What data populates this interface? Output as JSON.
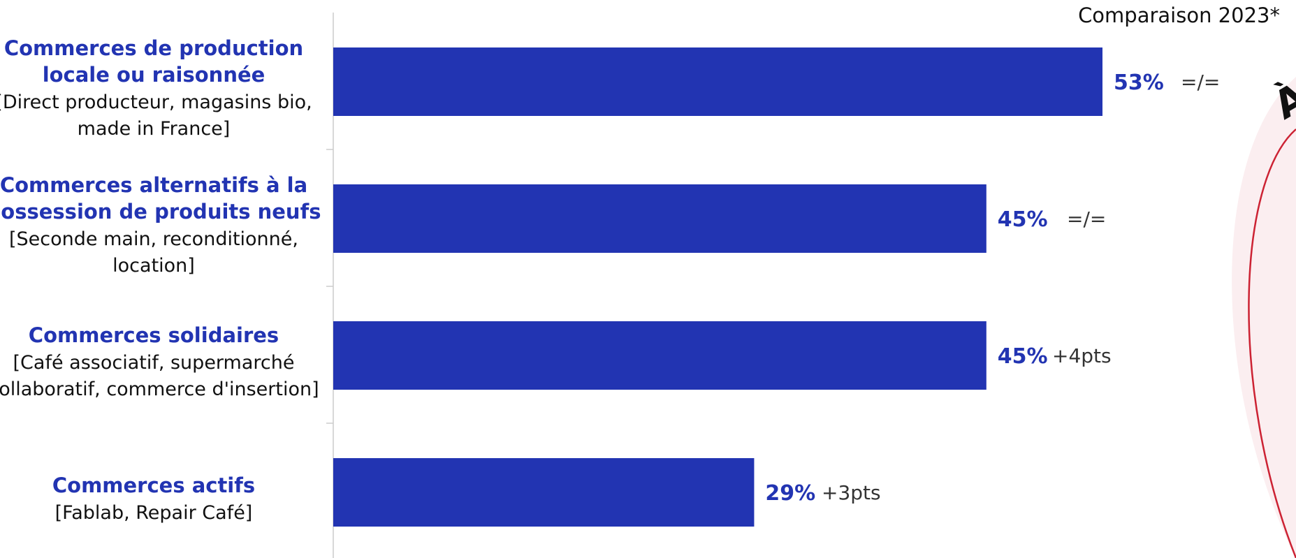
{
  "chart_data": {
    "type": "bar",
    "orientation": "horizontal",
    "comparison_header": "Comparaison 2023*",
    "categories": [
      {
        "title": [
          "Commerces de production",
          "locale ou raisonnée"
        ],
        "subtitle": [
          "[Direct producteur, magasins bio,",
          "made in France]"
        ]
      },
      {
        "title": [
          "Commerces alternatifs à la",
          "possession de produits neufs"
        ],
        "subtitle": [
          "[Seconde main, reconditionné,",
          "location]"
        ]
      },
      {
        "title": [
          "Commerces solidaires"
        ],
        "subtitle": [
          "[Café associatif, supermarché",
          "collaboratif, commerce d'insertion]"
        ]
      },
      {
        "title": [
          "Commerces actifs"
        ],
        "subtitle": [
          "[Fablab, Repair Café]"
        ]
      }
    ],
    "values": [
      53,
      45,
      45,
      29
    ],
    "value_labels": [
      "53%",
      "45%",
      "45%",
      "29%"
    ],
    "comparison_labels": [
      "=/=",
      "=/=",
      "+4pts",
      "+3pts"
    ],
    "xlim": [
      0,
      53
    ],
    "grid": false,
    "legend": "none"
  },
  "decoration": {
    "letter": "À",
    "stroke_color": "#cc2233",
    "fill_color": "#fbeef0"
  },
  "colors": {
    "bar": "#2234b2",
    "label_accent": "#2234b2",
    "axis": "#cccccc"
  }
}
